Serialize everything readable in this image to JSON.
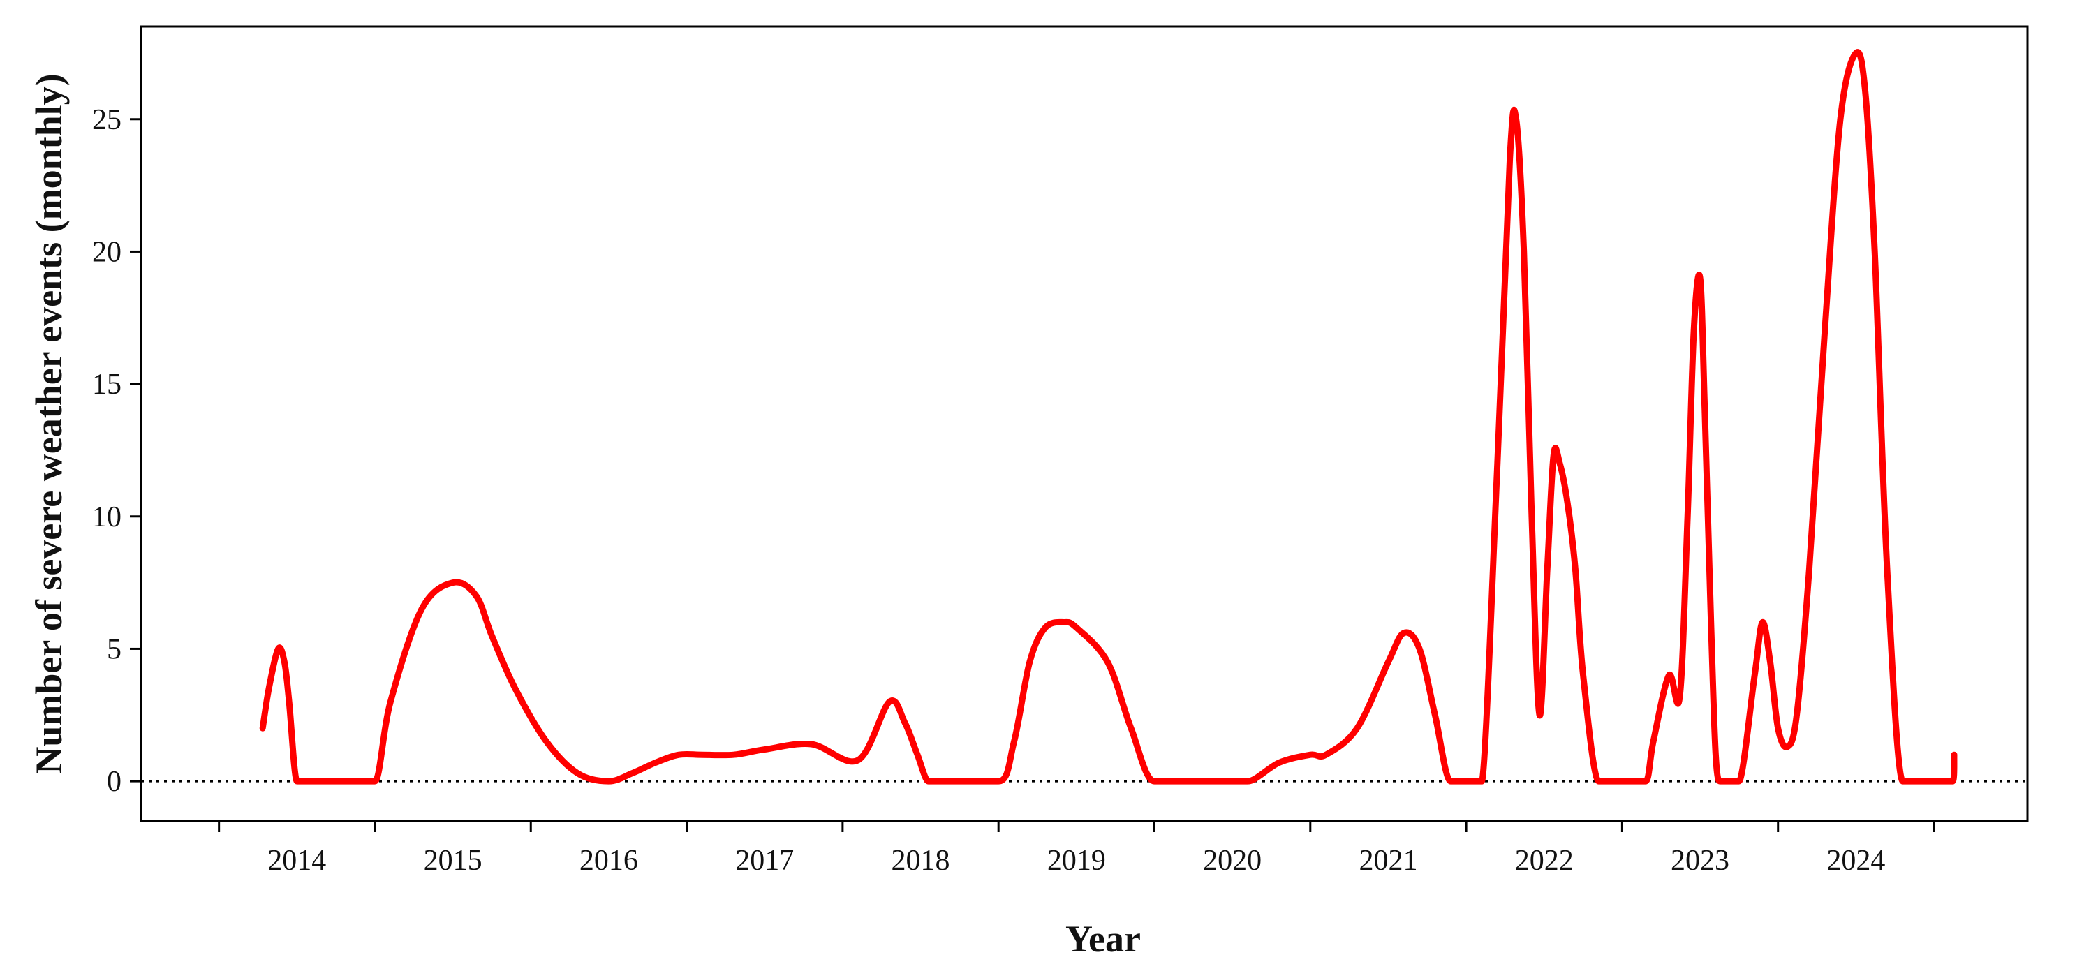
{
  "chart_data": {
    "type": "line",
    "title": "",
    "xlabel": "Year",
    "ylabel": "Number of severe weather events (monthly)",
    "x_tick_labels": [
      "2014",
      "2015",
      "2016",
      "2017",
      "2018",
      "2019",
      "2020",
      "2021",
      "2022",
      "2023",
      "2024"
    ],
    "y_ticks": [
      0,
      5,
      10,
      15,
      20,
      25
    ],
    "xlim": [
      2013.0,
      2025.1
    ],
    "ylim": [
      -1.5,
      28.5
    ],
    "grid": false,
    "legend": "none",
    "reference_line": {
      "y": 0,
      "style": "dotted"
    },
    "series": [
      {
        "color": "#ff0000",
        "x": [
          2013.78,
          2013.82,
          2013.88,
          2013.92,
          2013.95,
          2014.0,
          2014.05,
          2014.1,
          2014.2,
          2014.3,
          2014.4,
          2014.5,
          2014.6,
          2014.8,
          2015.0,
          2015.15,
          2015.25,
          2015.4,
          2015.6,
          2015.8,
          2016.0,
          2016.15,
          2016.3,
          2016.45,
          2016.6,
          2016.8,
          2017.0,
          2017.3,
          2017.6,
          2017.8,
          2017.9,
          2017.98,
          2018.05,
          2018.1,
          2018.15,
          2018.2,
          2018.5,
          2018.6,
          2018.7,
          2018.8,
          2018.92,
          2019.0,
          2019.2,
          2019.35,
          2019.5,
          2019.7,
          2019.9,
          2020.0,
          2020.1,
          2020.3,
          2020.5,
          2020.6,
          2020.8,
          2021.0,
          2021.1,
          2021.2,
          2021.3,
          2021.4,
          2021.5,
          2021.57,
          2021.6,
          2021.7,
          2021.78,
          2021.82,
          2021.87,
          2021.92,
          2021.97,
          2022.02,
          2022.06,
          2022.1,
          2022.15,
          2022.2,
          2022.25,
          2022.35,
          2022.45,
          2022.55,
          2022.65,
          2022.7,
          2022.8,
          2022.87,
          2022.92,
          2022.96,
          2023.0,
          2023.03,
          2023.07,
          2023.1,
          2023.13,
          2023.17,
          2023.2,
          2023.25,
          2023.35,
          2023.4,
          2023.45,
          2023.5,
          2023.56,
          2023.62,
          2023.7,
          2023.8,
          2023.9,
          2024.0,
          2024.06,
          2024.12,
          2024.2,
          2024.3,
          2024.4,
          2024.55,
          2024.62,
          2024.63
        ],
        "y": [
          2.0,
          3.5,
          5.0,
          4.5,
          3.0,
          0,
          0,
          0,
          0,
          0,
          0,
          0,
          3.0,
          6.5,
          7.5,
          7.0,
          5.5,
          3.5,
          1.5,
          0.3,
          0,
          0.3,
          0.7,
          1.0,
          1.0,
          1.0,
          1.2,
          1.4,
          0.8,
          3.0,
          2.2,
          1.0,
          0,
          0,
          0,
          0,
          0,
          1.5,
          4.5,
          5.8,
          6.0,
          5.8,
          4.5,
          2.0,
          0,
          0,
          0,
          0,
          0,
          0.7,
          1.0,
          1.0,
          2.0,
          4.5,
          5.6,
          5.0,
          2.5,
          0,
          0,
          0,
          0,
          12.0,
          23.5,
          25.0,
          20.0,
          10.0,
          2.5,
          8.0,
          12.3,
          12.0,
          10.5,
          8.0,
          4.0,
          0,
          0,
          0,
          0,
          1.5,
          4.0,
          3.2,
          10.0,
          17.0,
          19.0,
          14.0,
          6.0,
          1.0,
          0,
          0,
          0,
          0,
          4.0,
          6.0,
          4.5,
          2.0,
          1.3,
          2.5,
          8.0,
          17.0,
          25.0,
          27.5,
          26.0,
          20.0,
          8.0,
          0,
          0,
          0,
          0,
          1.0
        ]
      }
    ]
  }
}
